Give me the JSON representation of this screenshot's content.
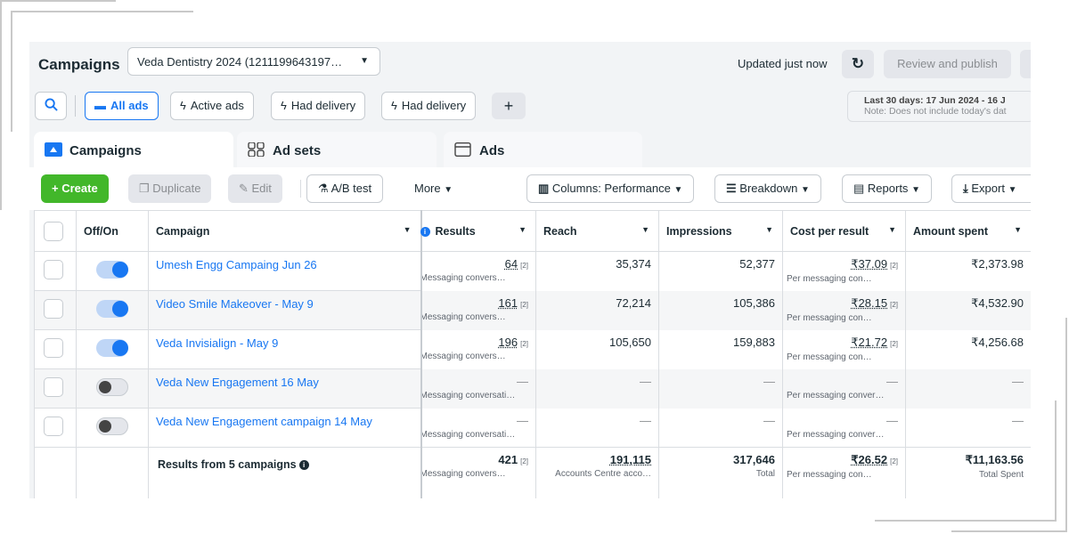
{
  "header": {
    "title": "Campaigns",
    "account": "Veda Dentistry 2024 (1211199643197…",
    "updated": "Updated just now",
    "review_publish": "Review and publish"
  },
  "filters": {
    "all_ads": "All ads",
    "active_ads": "Active ads",
    "had_delivery_1": "Had delivery",
    "had_delivery_2": "Had delivery",
    "add": "+"
  },
  "date_range": {
    "line1": "Last 30 days: 17 Jun 2024 - 16 J",
    "line2": "Note: Does not include today's dat"
  },
  "tabs": {
    "campaigns": "Campaigns",
    "ad_sets": "Ad sets",
    "ads": "Ads"
  },
  "toolbar": {
    "create": "+  Create",
    "duplicate": "Duplicate",
    "edit": "Edit",
    "ab_test": "A/B test",
    "more": "More",
    "columns": "Columns: Performance",
    "breakdown": "Breakdown",
    "reports": "Reports",
    "export": "Export"
  },
  "table": {
    "headers": {
      "offon": "Off/On",
      "campaign": "Campaign",
      "results": "Results",
      "reach": "Reach",
      "impressions": "Impressions",
      "cost": "Cost per result",
      "spent": "Amount spent"
    },
    "rows": [
      {
        "name": "Umesh Engg Campaing Jun 26",
        "on": true,
        "results": "64",
        "results_sub": "Messaging convers…",
        "reach": "35,374",
        "impressions": "52,377",
        "cost": "₹37.09",
        "cost_sub": "Per messaging con…",
        "spent": "₹2,373.98"
      },
      {
        "name": "Video Smile Makeover - May 9",
        "on": true,
        "results": "161",
        "results_sub": "Messaging convers…",
        "reach": "72,214",
        "impressions": "105,386",
        "cost": "₹28.15",
        "cost_sub": "Per messaging con…",
        "spent": "₹4,532.90"
      },
      {
        "name": "Veda Invisialign - May 9",
        "on": true,
        "results": "196",
        "results_sub": "Messaging convers…",
        "reach": "105,650",
        "impressions": "159,883",
        "cost": "₹21.72",
        "cost_sub": "Per messaging con…",
        "spent": "₹4,256.68"
      },
      {
        "name": "Veda New Engagement 16 May",
        "on": false,
        "results": "—",
        "results_sub": "Messaging conversati…",
        "reach": "—",
        "impressions": "—",
        "cost": "—",
        "cost_sub": "Per messaging conver…",
        "spent": "—"
      },
      {
        "name": "Veda New Engagement campaign 14 May",
        "on": false,
        "results": "—",
        "results_sub": "Messaging conversati…",
        "reach": "—",
        "impressions": "—",
        "cost": "—",
        "cost_sub": "Per messaging conver…",
        "spent": "—"
      }
    ],
    "superscript": "[2]",
    "totals": {
      "label": "Results from 5 campaigns",
      "results": "421",
      "results_sub": "Messaging convers…",
      "reach": "191,115",
      "reach_sub": "Accounts Centre acco…",
      "impressions": "317,646",
      "impressions_sub": "Total",
      "cost": "₹26.52",
      "cost_sub": "Per messaging con…",
      "spent": "₹11,163.56",
      "spent_sub": "Total Spent"
    }
  },
  "colors": {
    "accent": "#1877f2",
    "create_green": "#42b72a"
  }
}
